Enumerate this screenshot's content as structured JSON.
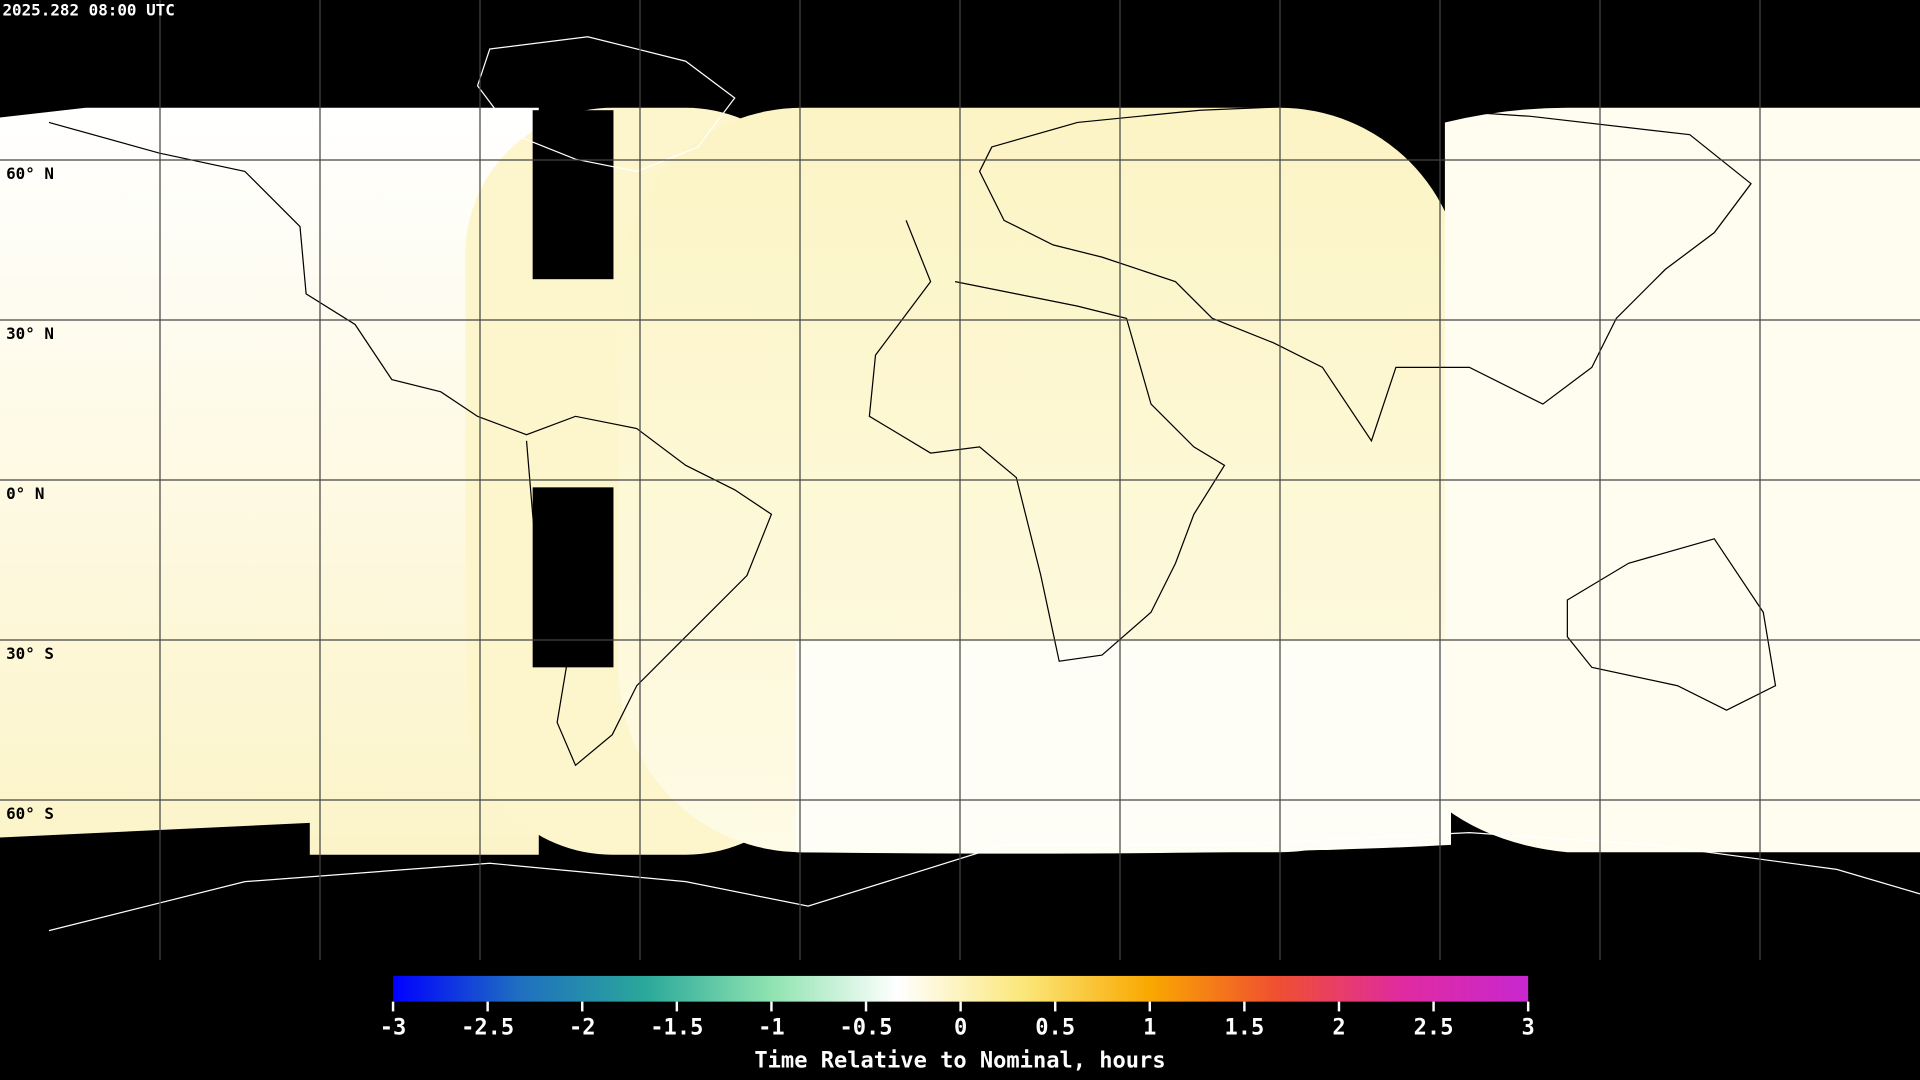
{
  "header": {
    "title": "2025.282 08:00 UTC"
  },
  "map": {
    "lat_labels": [
      "60° N",
      "30° N",
      "0° N",
      "30° S",
      "60° S"
    ]
  },
  "colorbar": {
    "lim": [
      -3,
      3
    ],
    "ticks": [
      -3,
      -2.5,
      -2,
      -1.5,
      -1,
      -0.5,
      0,
      0.5,
      1,
      1.5,
      2,
      2.5,
      3
    ],
    "colors": [
      "#0000ff",
      "#1f6fc0",
      "#2aa89a",
      "#8fe3b0",
      "#ffffff",
      "#fbe77a",
      "#f9a800",
      "#f05030",
      "#e02aa0",
      "#c828d0"
    ],
    "label": "Time Relative to Nominal, hours"
  }
}
